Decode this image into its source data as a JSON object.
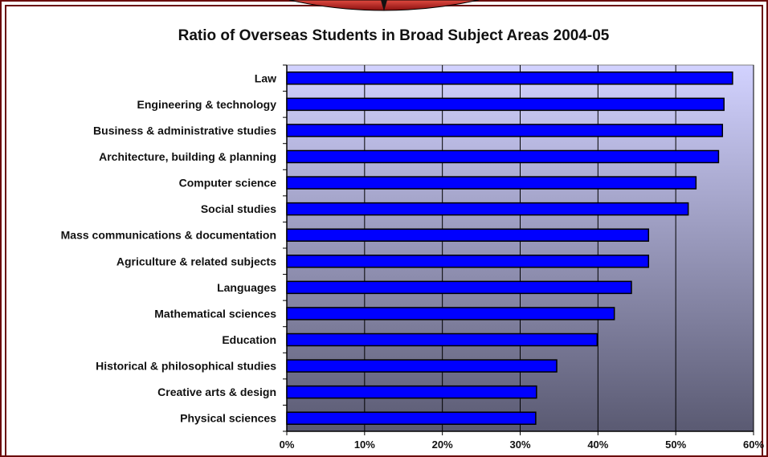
{
  "chart_data": {
    "type": "bar",
    "orientation": "horizontal",
    "title": "Ratio of Overseas Students in Broad Subject Areas 2004-05",
    "xlabel": "",
    "ylabel": "",
    "xlim": [
      0,
      0.6
    ],
    "x_tick_labels": [
      "0%",
      "10%",
      "20%",
      "30%",
      "40%",
      "50%",
      "60%"
    ],
    "categories": [
      "Law",
      "Engineering & technology",
      "Business & administrative studies",
      "Architecture, building & planning",
      "Computer science",
      "Social studies",
      "Mass communications & documentation",
      "Agriculture & related subjects",
      "Languages",
      "Mathematical sciences",
      "Education",
      "Historical & philosophical studies",
      "Creative arts & design",
      "Physical sciences"
    ],
    "values": [
      0.573,
      0.562,
      0.56,
      0.555,
      0.526,
      0.516,
      0.465,
      0.465,
      0.443,
      0.421,
      0.399,
      0.347,
      0.321,
      0.32
    ],
    "grid": true,
    "legend": "none",
    "colors": {
      "bar_fill": "#0000ff",
      "bar_stroke": "#000000",
      "plot_bg_top": "#d2d2ff",
      "plot_bg_bottom": "#5a5a72",
      "frame_border": "#6b0a0a",
      "top_ornament": "#c0302a"
    }
  }
}
